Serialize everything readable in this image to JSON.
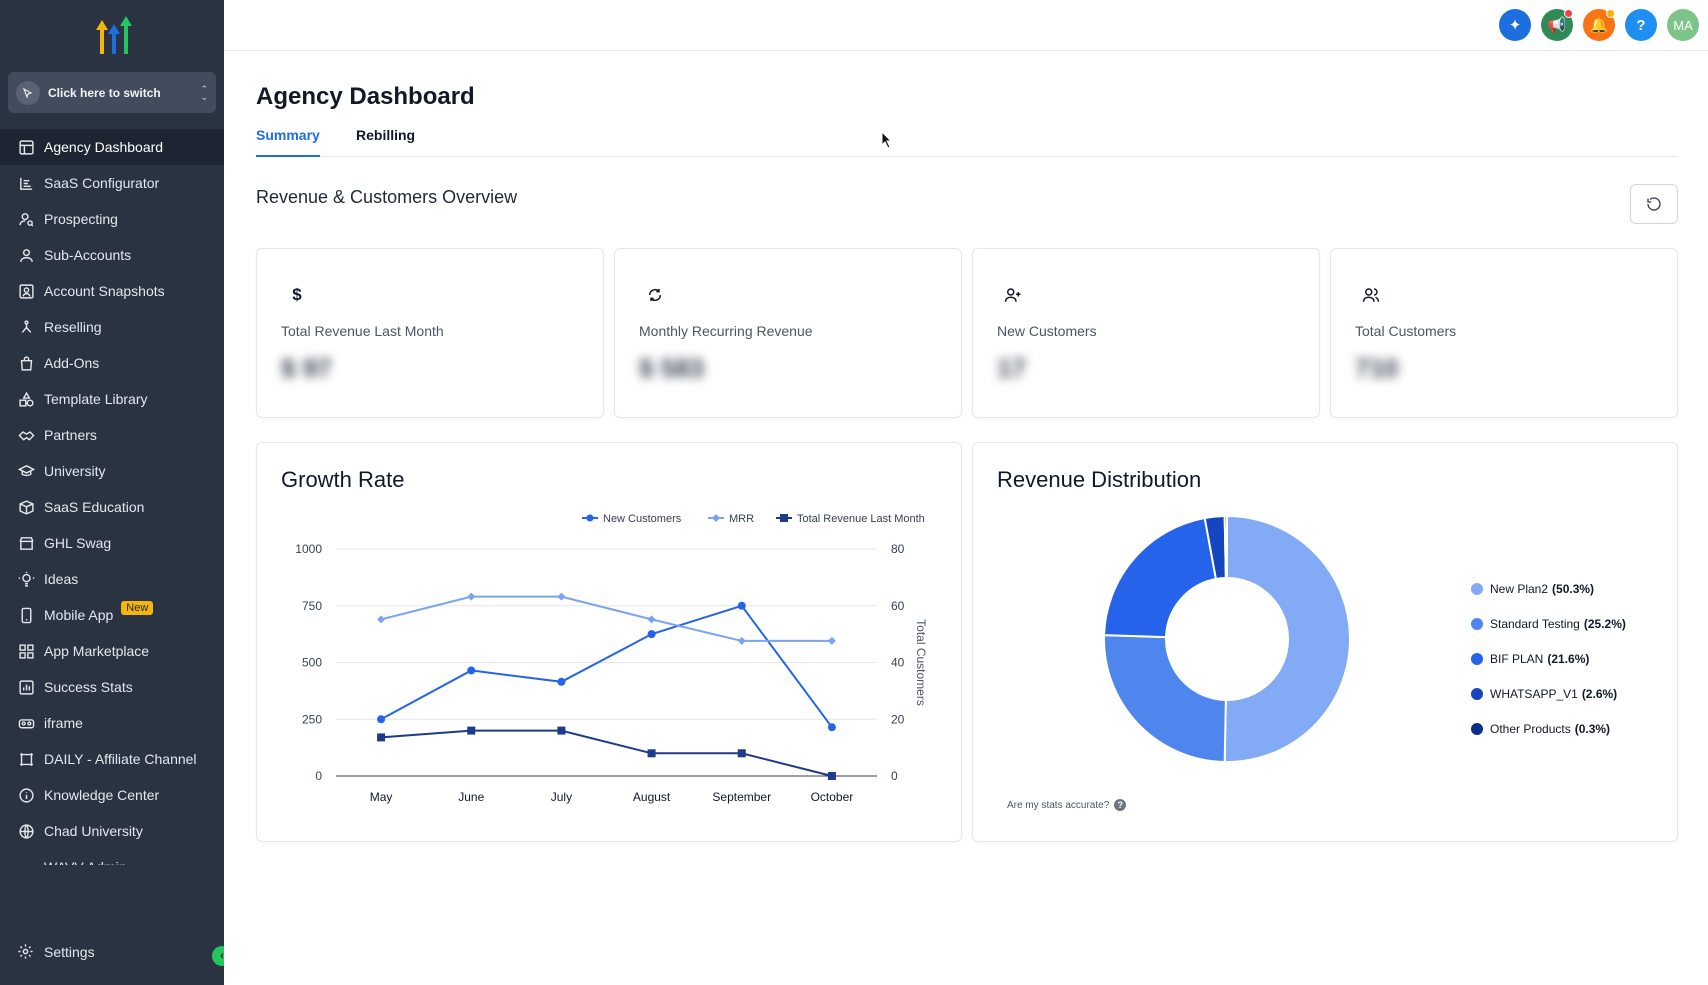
{
  "sidebar": {
    "switcher_label": "Click here to switch",
    "items": [
      {
        "label": "Agency Dashboard",
        "icon": "dashboard-icon",
        "active": true
      },
      {
        "label": "SaaS Configurator",
        "icon": "bar-chart-icon"
      },
      {
        "label": "Prospecting",
        "icon": "user-search-icon"
      },
      {
        "label": "Sub-Accounts",
        "icon": "user-icon"
      },
      {
        "label": "Account Snapshots",
        "icon": "snapshot-icon"
      },
      {
        "label": "Reselling",
        "icon": "network-icon"
      },
      {
        "label": "Add-Ons",
        "icon": "shopping-bag-icon"
      },
      {
        "label": "Template Library",
        "icon": "shapes-icon"
      },
      {
        "label": "Partners",
        "icon": "handshake-icon"
      },
      {
        "label": "University",
        "icon": "graduation-cap-icon"
      },
      {
        "label": "SaaS Education",
        "icon": "box-icon"
      },
      {
        "label": "GHL Swag",
        "icon": "store-icon"
      },
      {
        "label": "Ideas",
        "icon": "lightbulb-icon"
      },
      {
        "label": "Mobile App",
        "icon": "mobile-icon",
        "badge": "New"
      },
      {
        "label": "App Marketplace",
        "icon": "grid-icon"
      },
      {
        "label": "Success Stats",
        "icon": "stats-icon"
      },
      {
        "label": "iframe",
        "icon": "vr-icon"
      },
      {
        "label": "DAILY - Affiliate Channel",
        "icon": "frame-icon"
      },
      {
        "label": "Knowledge Center",
        "icon": "info-icon"
      },
      {
        "label": "Chad University",
        "icon": "globe-icon"
      },
      {
        "label": "WAVV Admin",
        "icon": "wave-icon"
      }
    ],
    "settings_label": "Settings"
  },
  "topbar": {
    "avatar_initials": "MA",
    "help_label": "?",
    "colors": {
      "magic": "#1d6fe0",
      "announce": "#2e8b57",
      "bell": "#f97316",
      "help": "#1f8ef1",
      "avatar": "#7dc48a"
    }
  },
  "page": {
    "title": "Agency Dashboard",
    "tabs": [
      {
        "label": "Summary",
        "active": true
      },
      {
        "label": "Rebilling"
      }
    ],
    "section_title": "Revenue & Customers Overview"
  },
  "stats": [
    {
      "label": "Total Revenue Last Month",
      "value": "$ 97",
      "icon": "dollar-icon"
    },
    {
      "label": "Monthly Recurring Revenue",
      "value": "$ 583",
      "icon": "recurring-icon"
    },
    {
      "label": "New Customers",
      "value": "17",
      "icon": "user-plus-icon"
    },
    {
      "label": "Total Customers",
      "value": "710",
      "icon": "users-icon"
    }
  ],
  "growth": {
    "title": "Growth Rate",
    "chart_data": {
      "type": "line",
      "categories": [
        "May",
        "June",
        "July",
        "August",
        "September",
        "October"
      ],
      "ylim_left": [
        0,
        1000
      ],
      "yticks_left": [
        "0",
        "250",
        "500",
        "750",
        "1000"
      ],
      "ylim_right": [
        0,
        80
      ],
      "yticks_right": [
        "0",
        "20",
        "40",
        "60",
        "80"
      ],
      "ylabel_right": "Total Customers",
      "grid": true,
      "legend_position": "top-right",
      "series": [
        {
          "name": "New Customers",
          "axis": "left",
          "marker": "circle",
          "color": "#2563eb",
          "values": [
            250,
            465,
            415,
            625,
            750,
            215
          ]
        },
        {
          "name": "MRR",
          "axis": "left",
          "marker": "diamond",
          "color": "#7ba3f0",
          "values": [
            690,
            790,
            790,
            690,
            595,
            595
          ]
        },
        {
          "name": "Total Revenue Last Month",
          "axis": "left",
          "marker": "square",
          "color": "#1e3a8a",
          "values": [
            170,
            200,
            200,
            100,
            100,
            0
          ]
        }
      ]
    }
  },
  "distribution": {
    "title": "Revenue Distribution",
    "accurate_label": "Are my stats accurate?",
    "chart_data": {
      "type": "pie",
      "donut": true,
      "legend_position": "right",
      "slices": [
        {
          "name": "New Plan2",
          "pct_label": "(50.3%)",
          "value": 50.3,
          "color": "#82aaf5"
        },
        {
          "name": "Standard Testing",
          "pct_label": "(25.2%)",
          "value": 25.2,
          "color": "#4f86ee"
        },
        {
          "name": "BIF PLAN",
          "pct_label": "(21.6%)",
          "value": 21.6,
          "color": "#2563eb"
        },
        {
          "name": "WHATSAPP_V1",
          "pct_label": "(2.6%)",
          "value": 2.6,
          "color": "#1546c0"
        },
        {
          "name": "Other Products",
          "pct_label": "(0.3%)",
          "value": 0.3,
          "color": "#0b2e8a"
        }
      ]
    }
  }
}
